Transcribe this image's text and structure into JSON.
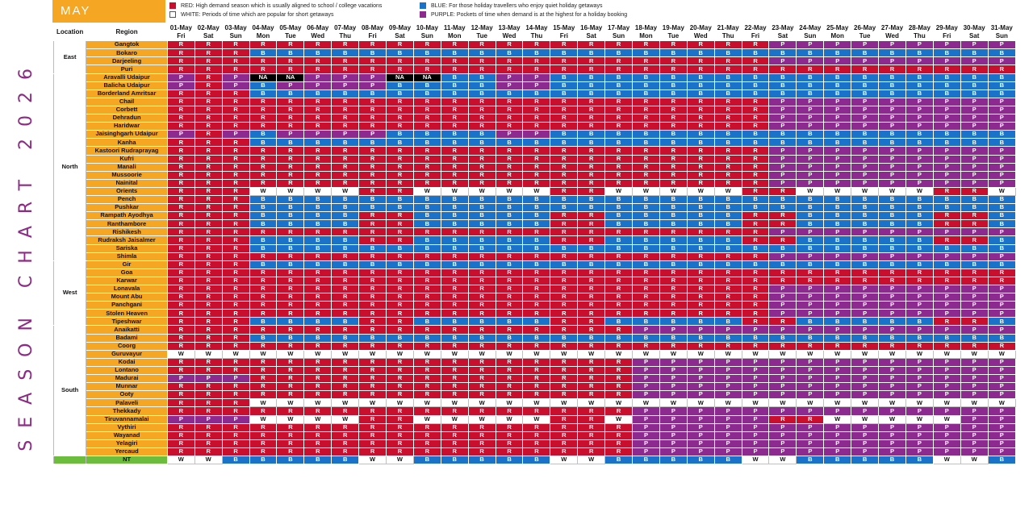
{
  "title": "SEASON CHART 2026",
  "month": "MAY",
  "legend": [
    {
      "code": "R",
      "color": "#c8102e",
      "text": "RED: High demand season which is usually aligned to school / college vacations"
    },
    {
      "code": "B",
      "color": "#1b73c9",
      "text": "BLUE: For those holiday travellers who enjoy quiet holiday getaways"
    },
    {
      "code": "W",
      "color": "#ffffff",
      "text": "WHITE: Periods of time which are popular for short getaways"
    },
    {
      "code": "P",
      "color": "#8d2a8f",
      "text": "PURPLE: Pockets of time when demand is at the highest for a holiday booking"
    }
  ],
  "headers": {
    "location": "Location",
    "region": "Region"
  },
  "dates": [
    "01-May",
    "02-May",
    "03-May",
    "04-May",
    "05-May",
    "06-May",
    "07-May",
    "08-May",
    "09-May",
    "10-May",
    "11-May",
    "12-May",
    "13-May",
    "14-May",
    "15-May",
    "16-May",
    "17-May",
    "18-May",
    "19-May",
    "20-May",
    "21-May",
    "22-May",
    "23-May",
    "24-May",
    "25-May",
    "26-May",
    "27-May",
    "28-May",
    "29-May",
    "30-May",
    "31-May"
  ],
  "days": [
    "Fri",
    "Sat",
    "Sun",
    "Mon",
    "Tue",
    "Wed",
    "Thu",
    "Fri",
    "Sat",
    "Sun",
    "Mon",
    "Tue",
    "Wed",
    "Thu",
    "Fri",
    "Sat",
    "Sun",
    "Mon",
    "Tue",
    "Wed",
    "Thu",
    "Fri",
    "Sat",
    "Sun",
    "Mon",
    "Tue",
    "Wed",
    "Thu",
    "Fri",
    "Sat",
    "Sun"
  ],
  "groups": [
    {
      "location": "East",
      "rows": [
        {
          "region": "Gangtok",
          "cells": "RRRRRRRRRRRRRRRRRRRRRRPPPPPPPPP"
        },
        {
          "region": "Bokaro",
          "cells": "RRRBBBBBBBBBBBBBBBBBBBBBBBBBBBB"
        },
        {
          "region": "Darjeeling",
          "cells": "RRRRRRRRRRRRRRRRRRRRRRPPPPPPPPP"
        },
        {
          "region": "Puri",
          "cells": "RRRRRRRRRRRRRRRRRRRRRRRRRRRRRRR"
        }
      ]
    },
    {
      "location": "North",
      "rows": [
        {
          "region": "Aravalli Udaipur",
          "cells": "PRPNNPPPNNBBPPBBBBBBBBBBBBBBBBB"
        },
        {
          "region": "Balicha Udaipur",
          "cells": "PRPBPPPPBBBBPPBBBBBBBBBBBBBBBBB"
        },
        {
          "region": "Borderland Amritsar",
          "cells": "RRRBBBBBBBBBBBBBBBBBBBBBBBBBBBB"
        },
        {
          "region": "Chail",
          "cells": "RRRRRRRRRRRRRRRRRRRRRRPPPPPPPPP"
        },
        {
          "region": "Corbett",
          "cells": "RRRRRRRRRRRRRRRRRRRRRRPPPPPPPPP"
        },
        {
          "region": "Dehradun",
          "cells": "RRRRRRRRRRRRRRRRRRRRRRPPPPPPPPP"
        },
        {
          "region": "Haridwar",
          "cells": "RRRRRRRRRRRRRRRRRRRRRRPPPPPPPPP"
        },
        {
          "region": "Jaisinghgarh Udaipur",
          "cells": "PRPBPPPPBBBBPPBBBBBBBBBBBBBBBBB"
        },
        {
          "region": "Kanha",
          "cells": "RRRBBBBBBBBBBBBBBBBBBBBBBBBBBBB"
        },
        {
          "region": "Kastoori Rudraprayag",
          "cells": "RRRRRRRRRRRRRRRRRRRRRRPPPPPPPPP"
        },
        {
          "region": "Kufri",
          "cells": "RRRRRRRRRRRRRRRRRRRRRRPPPPPPPPP"
        },
        {
          "region": "Manali",
          "cells": "RRRRRRRRRRRRRRRRRRRRRRPPPPPPPPP"
        },
        {
          "region": "Mussoorie",
          "cells": "RRRRRRRRRRRRRRRRRRRRRRPPPPPPPPP"
        },
        {
          "region": "Nainital",
          "cells": "RRRRRRRRRRRRRRRRRRRRRRPPPPPPPPP"
        },
        {
          "region": "Orients",
          "cells": "RRRWWWWRRWWWWWRRWWWWWRRWWWWWRRW"
        },
        {
          "region": "Pench",
          "cells": "RRRBBBBBBBBBBBBBBBBBBBBBBBBBBBB"
        },
        {
          "region": "Pushkar",
          "cells": "RRRBBBBBBBBBBBBBBBBBBBBBBBBBBBB"
        },
        {
          "region": "Rampath Ayodhya",
          "cells": "RRRBBBBRRBBBBBRRBBBBBRRBBBBBRRB"
        },
        {
          "region": "Ranthambore",
          "cells": "RRRBBBBRRBBBBBRRBBBBBRRBBBBBRRB"
        },
        {
          "region": "Rishikesh",
          "cells": "RRRRRRRRRRRRRRRRRRRRRRPPPPPPPPP"
        },
        {
          "region": "Rudraksh Jaisalmer",
          "cells": "RRRBBBBRRBBBBBRRBBBBBRRBBBBBRRB"
        },
        {
          "region": "Sariska",
          "cells": "RRRBBBBBBBBBBBBBBBBBBBBBBBBBBBB"
        },
        {
          "region": "Shimla",
          "cells": "RRRRRRRRRRRRRRRRRRRRRRPPPPPPPPP"
        }
      ]
    },
    {
      "location": "West",
      "rows": [
        {
          "region": "Gir",
          "cells": "RRRBBBBBBBBBBBBBBBBBBBBBBBBBBBB"
        },
        {
          "region": "Goa",
          "cells": "RRRRRRRRRRRRRRRRRRRRRRRRRRRRRRR"
        },
        {
          "region": "Karwar",
          "cells": "RRRRRRRRRRRRRRRRRRRRRRRRRRRRRRR"
        },
        {
          "region": "Lonavala",
          "cells": "RRRRRRRRRRRRRRRRRRRRRRPPPPPPPPP"
        },
        {
          "region": "Mount Abu",
          "cells": "RRRRRRRRRRRRRRRRRRRRRRPPPPPPPPP"
        },
        {
          "region": "Panchgani",
          "cells": "RRRRRRRRRRRRRRRRRRRRRRPPPPPPPPP"
        },
        {
          "region": "Stolen Heaven",
          "cells": "RRRRRRRRRRRRRRRRRRRRRRPPPPPPPPP"
        },
        {
          "region": "Tipeshwar",
          "cells": "RRRBBBBRRBBBBBRRBBBBBRRBBBBBRRB"
        }
      ]
    },
    {
      "location": "South",
      "rows": [
        {
          "region": "Anaikatti",
          "cells": "RRRRRRRRRRRRRRRRRPPPPPPPPPPPPPP"
        },
        {
          "region": "Badami",
          "cells": "RRRBBBBBBBBBBBBBBBBBBBBBBBBBBBB"
        },
        {
          "region": "Coorg",
          "cells": "RRRRRRRRRRRRRRRRRRRRRRRRRRRRRRR"
        },
        {
          "region": "Guruvayur",
          "cells": "WWWWWWWWWWWWWWWWWWWWWWWWWWWWWWW"
        },
        {
          "region": "Kodai",
          "cells": "RRRRRRRRRRRRRRRRRPPPPPPPPPPPPPP"
        },
        {
          "region": "Lontano",
          "cells": "RRRRRRRRRRRRRRRRRPPPPPPPPPPPPPP"
        },
        {
          "region": "Madurai",
          "cells": "PPPRRRRRRRRRRRRRRPPPPPPPPPPPPPP"
        },
        {
          "region": "Munnar",
          "cells": "RRRRRRRRRRRRRRRRRPPPPPPPPPPPPPP"
        },
        {
          "region": "Ooty",
          "cells": "RRRRRRRRRRRRRRRRRPPPPPPPPPPPPPP"
        },
        {
          "region": "Palaveli",
          "cells": "RRRWWWWWWWWWWWWWWWWWWWWWWWWWWWW"
        },
        {
          "region": "Thekkady",
          "cells": "RRRRRRRRRRRRRRRRRPPPPPPPPPPPPPP"
        },
        {
          "region": "Tiruvannamalai",
          "cells": "PPPWWWWRRWWWWWRRWPPPPPRRWWWWWPP"
        },
        {
          "region": "Vythiri",
          "cells": "RRRRRRRRRRRRRRRRRPPPPPPPPPPPPPP"
        },
        {
          "region": "Wayanad",
          "cells": "RRRRRRRRRRRRRRRRRPPPPPPPPPPPPPP"
        },
        {
          "region": "Yelagiri",
          "cells": "RRRRRRRRRRRRRRRRRPPPPPPPPPPPPPP"
        },
        {
          "region": "Yercaud",
          "cells": "RRRRRRRRRRRRRRRRRPPPPPPPPPPPPPP"
        }
      ]
    },
    {
      "location": "",
      "rows": [
        {
          "region": "NT",
          "cells": "WWBBBBBWWBBBBBWWBBBBBWWBBBBBWWB",
          "tone": "nt"
        }
      ]
    }
  ]
}
